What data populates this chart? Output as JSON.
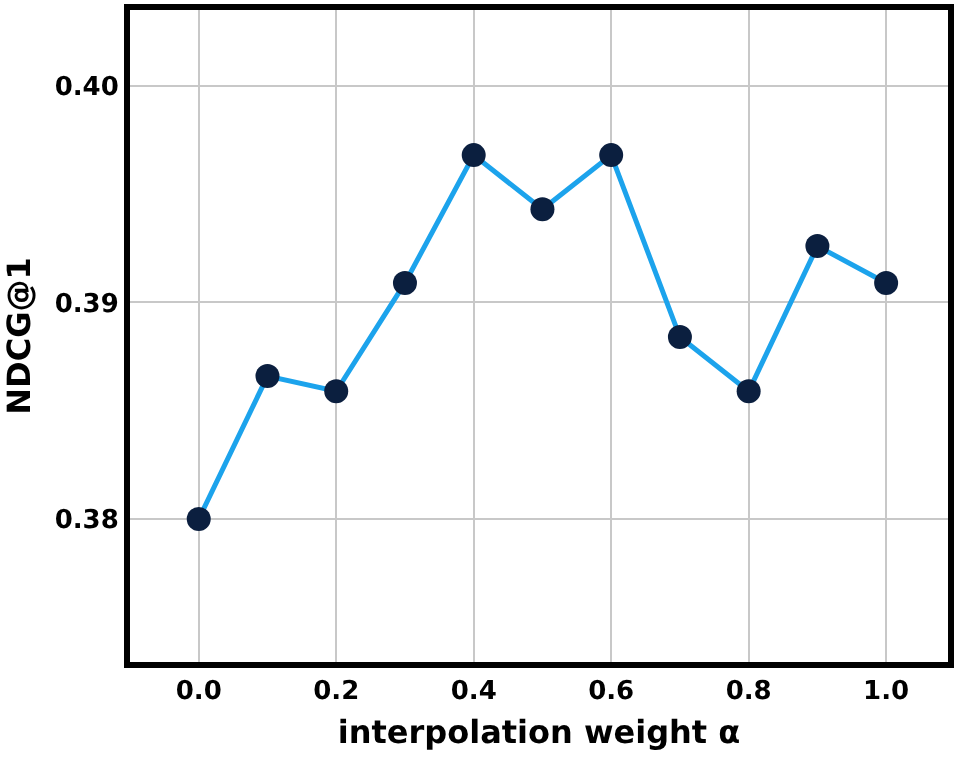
{
  "chart_data": {
    "type": "line",
    "xlabel": "interpolation weight α",
    "ylabel": "NDCG@1",
    "x": [
      0.0,
      0.1,
      0.2,
      0.3,
      0.4,
      0.5,
      0.6,
      0.7,
      0.8,
      0.9,
      1.0
    ],
    "series": [
      {
        "color": "#1ca3ec",
        "colors": [
          "#0b1f3f",
          "#0b1f3f",
          "#0b1f3f",
          "#0b1f3f",
          "#0b1f3f",
          "#0b1f3f",
          "#0b1f3f",
          "#0b1f3f",
          "#0b1f3f",
          "#0b1f3f",
          "#0b1f3f"
        ],
        "values": [
          0.38,
          0.3866,
          0.3859,
          0.3909,
          0.3968,
          0.3943,
          0.3968,
          0.3884,
          0.3859,
          0.3926,
          0.3909
        ]
      }
    ],
    "xlim": [
      -0.1,
      1.09
    ],
    "ylim": [
      0.3734,
      0.4035
    ],
    "xticks": [
      {
        "value": 0.0,
        "label": "0.0"
      },
      {
        "value": 0.2,
        "label": "0.2"
      },
      {
        "value": 0.4,
        "label": "0.4"
      },
      {
        "value": 0.6,
        "label": "0.6"
      },
      {
        "value": 0.8,
        "label": "0.8"
      },
      {
        "value": 1.0,
        "label": "1.0"
      }
    ],
    "yticks": [
      {
        "value": 0.38,
        "label": "0.38"
      },
      {
        "value": 0.39,
        "label": "0.39"
      },
      {
        "value": 0.4,
        "label": "0.40"
      }
    ],
    "grid": true,
    "marker": "circle",
    "line_style": "solid"
  }
}
